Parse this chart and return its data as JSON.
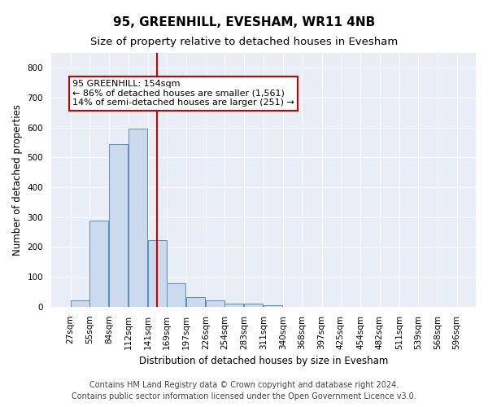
{
  "title": "95, GREENHILL, EVESHAM, WR11 4NB",
  "subtitle": "Size of property relative to detached houses in Evesham",
  "xlabel": "Distribution of detached houses by size in Evesham",
  "ylabel": "Number of detached properties",
  "bar_color": "#cad9ec",
  "bar_edge_color": "#5b8db8",
  "background_color": "#e8eef8",
  "grid_color": "#ffffff",
  "vline_value": 154,
  "vline_color": "#cc0000",
  "annotation_text": "95 GREENHILL: 154sqm\n← 86% of detached houses are smaller (1,561)\n14% of semi-detached houses are larger (251) →",
  "annotation_box_color": "#ffffff",
  "annotation_box_edge": "#cc0000",
  "bins": [
    27,
    55,
    84,
    112,
    141,
    169,
    197,
    226,
    254,
    283,
    311,
    340,
    368,
    397,
    425,
    454,
    482,
    511,
    539,
    568,
    596
  ],
  "counts": [
    22,
    288,
    544,
    596,
    222,
    79,
    33,
    22,
    11,
    10,
    6,
    0,
    0,
    0,
    0,
    0,
    0,
    0,
    0,
    0
  ],
  "ylim": [
    0,
    850
  ],
  "yticks": [
    0,
    100,
    200,
    300,
    400,
    500,
    600,
    700,
    800
  ],
  "footer": "Contains HM Land Registry data © Crown copyright and database right 2024.\nContains public sector information licensed under the Open Government Licence v3.0.",
  "footer_fontsize": 7,
  "title_fontsize": 11,
  "subtitle_fontsize": 9.5,
  "xlabel_fontsize": 8.5,
  "ylabel_fontsize": 8.5,
  "tick_fontsize": 7.5,
  "annot_fontsize": 8
}
